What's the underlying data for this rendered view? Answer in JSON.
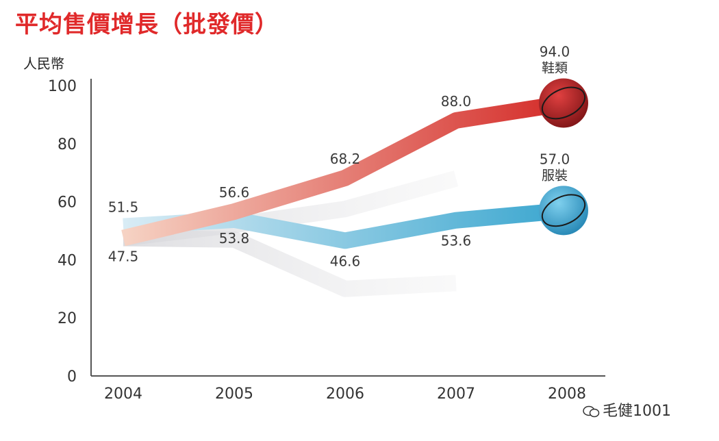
{
  "chart_data": {
    "type": "line",
    "title": "平均售價增長（批發價）",
    "xlabel": "",
    "ylabel": "人民幣",
    "categories": [
      "2004",
      "2005",
      "2006",
      "2007",
      "2008"
    ],
    "ylim": [
      0,
      100
    ],
    "yticks": [
      0,
      20,
      40,
      60,
      80,
      100
    ],
    "series": [
      {
        "name": "鞋類",
        "values": [
          47.5,
          56.6,
          68.2,
          88.0,
          94.0
        ],
        "labels": [
          "47.5",
          "56.6",
          "68.2",
          "88.0",
          "94.0"
        ],
        "color_start": "#f6d3c4",
        "color_end": "#d42a27",
        "end_ball": "#a41d1f"
      },
      {
        "name": "服裝",
        "values": [
          51.5,
          53.8,
          46.6,
          53.6,
          57.0
        ],
        "labels": [
          "51.5",
          "53.8",
          "46.6",
          "53.6",
          "57.0"
        ],
        "color_start": "#d9ecf5",
        "color_end": "#3aa6cf",
        "end_ball": "#3aa6cf"
      }
    ],
    "background_series": [
      {
        "name": "ghost-upper",
        "values": [
          47.5,
          52.0,
          57.5,
          68.0
        ],
        "color": "#e4e4e6"
      },
      {
        "name": "ghost-lower",
        "values": [
          47.5,
          47.0,
          30.0,
          32.0
        ],
        "color": "#dcdcde"
      }
    ],
    "grid": false,
    "legend": "inline-end-labels"
  },
  "watermark": {
    "text": "毛健1001",
    "icon": "wechat-icon"
  }
}
